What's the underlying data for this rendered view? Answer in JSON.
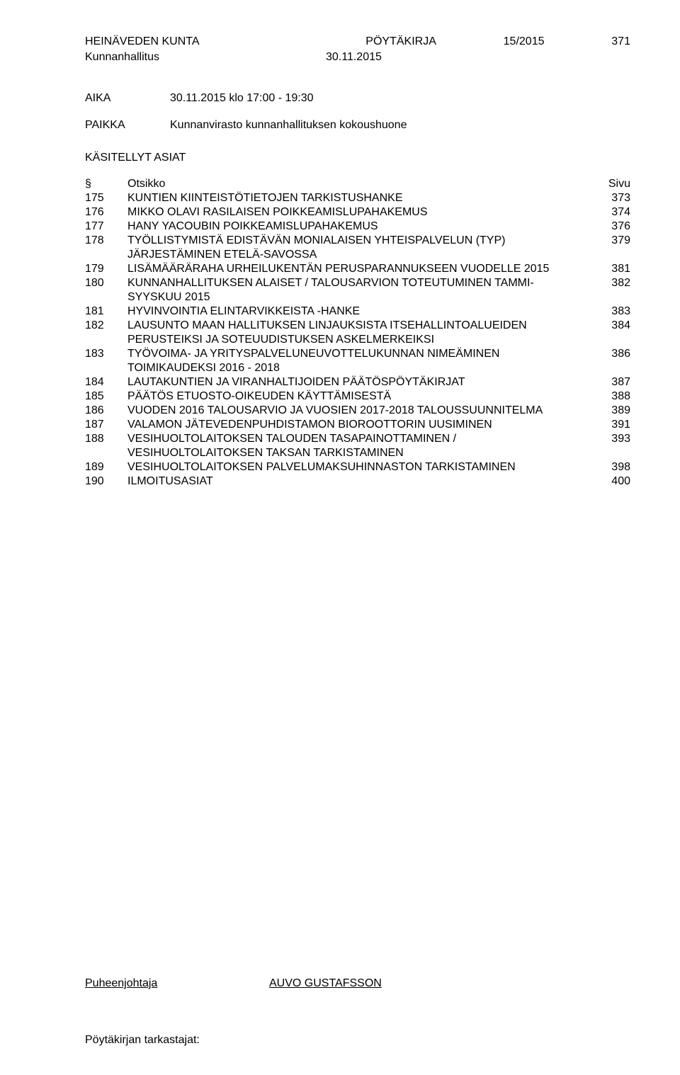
{
  "header": {
    "org": "HEINÄVEDEN KUNTA",
    "doc_type": "PÖYTÄKIRJA",
    "doc_num": "15/2015",
    "page_num": "371"
  },
  "sub_header": {
    "body": "Kunnanhallitus",
    "date": "30.11.2015"
  },
  "aika": {
    "label": "AIKA",
    "value": "30.11.2015 klo 17:00 - 19:30"
  },
  "paikka": {
    "label": "PAIKKA",
    "value": "Kunnanvirasto kunnanhallituksen kokoushuone"
  },
  "section_title": "KÄSITELLYT ASIAT",
  "col_headers": {
    "sym": "§",
    "title": "Otsikko",
    "page": "Sivu"
  },
  "items": [
    {
      "num": "175",
      "title": "KUNTIEN KIINTEISTÖTIETOJEN TARKISTUSHANKE",
      "page": "373"
    },
    {
      "num": "176",
      "title": "MIKKO OLAVI RASILAISEN POIKKEAMISLUPAHAKEMUS",
      "page": "374"
    },
    {
      "num": "177",
      "title": "HANY YACOUBIN POIKKEAMISLUPAHAKEMUS",
      "page": "376"
    },
    {
      "num": "178",
      "title": "TYÖLLISTYMISTÄ EDISTÄVÄN MONIALAISEN YHTEISPALVELUN (TYP) JÄRJESTÄMINEN ETELÄ-SAVOSSA",
      "page": "379"
    },
    {
      "num": "179",
      "title": "LISÄMÄÄRÄRAHA URHEILUKENTÄN PERUSPARANNUKSEEN VUODELLE 2015",
      "page": "381"
    },
    {
      "num": "180",
      "title": "KUNNANHALLITUKSEN ALAISET / TALOUSARVION TOTEUTUMINEN TAMMI-SYYSKUU 2015",
      "page": "382"
    },
    {
      "num": "181",
      "title": "HYVINVOINTIA ELINTARVIKKEISTA -HANKE",
      "page": "383"
    },
    {
      "num": "182",
      "title": "LAUSUNTO MAAN HALLITUKSEN LINJAUKSISTA ITSEHALLINTOALUEIDEN PERUSTEIKSI JA SOTEUUDISTUKSEN ASKELMERKEIKSI",
      "page": "384"
    },
    {
      "num": "183",
      "title": "TYÖVOIMA- JA YRITYSPALVELUNEUVOTTELUKUNNAN NIMEÄMINEN TOIMIKAUDEKSI 2016 - 2018",
      "page": "386"
    },
    {
      "num": "184",
      "title": "LAUTAKUNTIEN JA VIRANHALTIJOIDEN PÄÄTÖSPÖYTÄKIRJAT",
      "page": "387"
    },
    {
      "num": "185",
      "title": "PÄÄTÖS ETUOSTO-OIKEUDEN KÄYTTÄMISESTÄ",
      "page": "388"
    },
    {
      "num": "186",
      "title": "VUODEN 2016 TALOUSARVIO JA VUOSIEN 2017-2018 TALOUSSUUNNITELMA",
      "page": "389"
    },
    {
      "num": "187",
      "title": "VALAMON JÄTEVEDENPUHDISTAMON BIOROOTTORIN UUSIMINEN",
      "page": "391"
    },
    {
      "num": "188",
      "title": "VESIHUOLTOLAITOKSEN TALOUDEN TASAPAINOTTAMINEN / VESIHUOLTOLAITOKSEN TAKSAN TARKISTAMINEN",
      "page": "393"
    },
    {
      "num": "189",
      "title": "VESIHUOLTOLAITOKSEN PALVELUMAKSUHINNASTON TARKISTAMINEN",
      "page": "398"
    },
    {
      "num": "190",
      "title": "ILMOITUSASIAT",
      "page": "400"
    }
  ],
  "signature": {
    "label": "Puheenjohtaja",
    "name": "AUVO GUSTAFSSON"
  },
  "footer": "Pöytäkirjan tarkastajat:"
}
